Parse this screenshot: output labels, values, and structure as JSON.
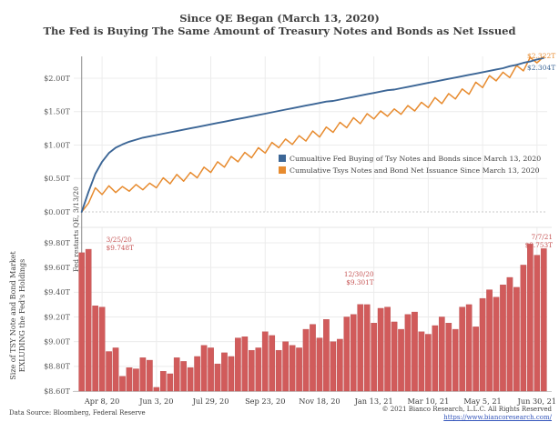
{
  "header": {
    "title_line1": "Since QE Began (March 13, 2020)",
    "title_line2": "The Fed is Buying The Same Amount of Treasury Notes and Bonds as Net Issued"
  },
  "x_axis": {
    "tick_labels": [
      "Apr 8, 20",
      "Jun 3, 20",
      "Jul 29, 20",
      "Sep 23, 20",
      "Nov 18, 20",
      "Jan 13, 21",
      "Mar 10, 21",
      "May 5, 21",
      "Jun 30, 21"
    ],
    "tick_indices": [
      3,
      11,
      19,
      27,
      35,
      43,
      51,
      59,
      67
    ]
  },
  "chart_data": [
    {
      "type": "line",
      "panel": "top",
      "title": "",
      "xlabel": "",
      "ylabel": "",
      "ylim": [
        0,
        2.35
      ],
      "grid": true,
      "legend_position": "inside-right-middle",
      "ytick_labels": [
        "$2.00T",
        "$1.50T",
        "$1.00T",
        "$0.50T",
        "$0.00T"
      ],
      "ytick_values": [
        2.0,
        1.5,
        1.0,
        0.5,
        0.0
      ],
      "vline_annotation": {
        "x_index": 0,
        "label": "Fed restarts QE, 3/13/20"
      },
      "series": [
        {
          "name": "Cumualtive Fed Buying of Tsy Notes and Bonds since March 13, 2020",
          "color": "#3C6696",
          "end_label": "$2.304T",
          "values": [
            0.0,
            0.3,
            0.57,
            0.75,
            0.88,
            0.96,
            1.01,
            1.05,
            1.08,
            1.11,
            1.13,
            1.15,
            1.17,
            1.19,
            1.21,
            1.23,
            1.25,
            1.27,
            1.29,
            1.31,
            1.33,
            1.35,
            1.37,
            1.39,
            1.41,
            1.43,
            1.45,
            1.47,
            1.49,
            1.51,
            1.53,
            1.55,
            1.57,
            1.59,
            1.61,
            1.63,
            1.65,
            1.66,
            1.68,
            1.7,
            1.72,
            1.74,
            1.76,
            1.78,
            1.8,
            1.82,
            1.83,
            1.85,
            1.87,
            1.89,
            1.91,
            1.93,
            1.95,
            1.97,
            1.99,
            2.01,
            2.03,
            2.05,
            2.07,
            2.09,
            2.11,
            2.13,
            2.15,
            2.18,
            2.2,
            2.23,
            2.25,
            2.28,
            2.304
          ]
        },
        {
          "name": "Cumulative Tsys Notes and Bond Net Issuance Since March 13, 2020",
          "color": "#E78B2F",
          "end_label": "$2.322T",
          "values": [
            0.0,
            0.13,
            0.36,
            0.26,
            0.39,
            0.29,
            0.38,
            0.31,
            0.41,
            0.33,
            0.43,
            0.36,
            0.51,
            0.42,
            0.56,
            0.46,
            0.59,
            0.51,
            0.67,
            0.59,
            0.75,
            0.67,
            0.83,
            0.75,
            0.89,
            0.81,
            0.96,
            0.88,
            1.04,
            0.96,
            1.09,
            1.01,
            1.14,
            1.06,
            1.21,
            1.12,
            1.27,
            1.19,
            1.34,
            1.26,
            1.41,
            1.32,
            1.47,
            1.39,
            1.51,
            1.43,
            1.54,
            1.46,
            1.59,
            1.51,
            1.64,
            1.56,
            1.71,
            1.62,
            1.77,
            1.69,
            1.84,
            1.76,
            1.94,
            1.86,
            2.04,
            1.96,
            2.09,
            2.01,
            2.19,
            2.11,
            2.31,
            2.23,
            2.322
          ]
        }
      ]
    },
    {
      "type": "bar",
      "panel": "bottom",
      "ylabel_line1": "Size of TSY Note and Bond Market",
      "ylabel_line2": "EXLUDING the Fed's Holdings",
      "ylim": [
        8.6,
        9.85
      ],
      "grid": true,
      "ytick_labels": [
        "$9.80T",
        "$9.60T",
        "$9.40T",
        "$9.20T",
        "$9.00T",
        "$8.80T",
        "$8.60T"
      ],
      "ytick_values": [
        9.8,
        9.6,
        9.4,
        9.2,
        9.0,
        8.8,
        8.6
      ],
      "bar_color": "#D15B5B",
      "values": [
        9.72,
        9.748,
        9.29,
        9.28,
        8.92,
        8.95,
        8.72,
        8.79,
        8.78,
        8.87,
        8.85,
        8.63,
        8.76,
        8.74,
        8.87,
        8.84,
        8.79,
        8.88,
        8.97,
        8.95,
        8.82,
        8.91,
        8.88,
        9.03,
        9.04,
        8.93,
        8.95,
        9.08,
        9.05,
        8.93,
        9.0,
        8.97,
        8.95,
        9.1,
        9.14,
        9.03,
        9.18,
        9.0,
        9.02,
        9.2,
        9.22,
        9.301,
        9.3,
        9.15,
        9.27,
        9.28,
        9.16,
        9.1,
        9.22,
        9.24,
        9.08,
        9.06,
        9.13,
        9.2,
        9.15,
        9.1,
        9.28,
        9.3,
        9.12,
        9.35,
        9.42,
        9.36,
        9.46,
        9.52,
        9.44,
        9.62,
        9.79,
        9.7,
        9.753
      ],
      "annotations": [
        {
          "index": 1,
          "date": "3/25/20",
          "value_label": "$9.748T"
        },
        {
          "index": 41,
          "date": "12/30/20",
          "value_label": "$9.301T"
        },
        {
          "index": 68,
          "date": "7/7/21",
          "value_label": "$9.753T"
        }
      ]
    }
  ],
  "footer": {
    "source": "Data Source: Bloomberg, Federal Reserve",
    "copyright": "© 2021 Bianco Research, L.L.C. All Rights Reserved",
    "url": "https://www.biancoresearch.com/"
  },
  "colors": {
    "fed_line_blue": "#3C6696",
    "issuance_line_orange": "#E78B2F",
    "bar_red": "#D15B5B",
    "annotation_red": "#C65555",
    "link_blue": "#3355BB",
    "grid_gray": "#ECECEC",
    "text_dark": "#3F3F3F",
    "axis_text": "#595959"
  }
}
